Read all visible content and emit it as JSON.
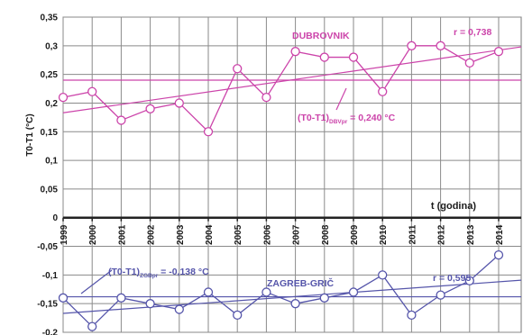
{
  "chart_data": {
    "type": "line",
    "ylabel": "T0-T1 (°C)",
    "xlabel": "t (godina)",
    "x": [
      1999,
      2000,
      2001,
      2002,
      2003,
      2004,
      2005,
      2006,
      2007,
      2008,
      2009,
      2010,
      2011,
      2012,
      2013,
      2014
    ],
    "x_tick_labels": [
      "1999",
      "2000",
      "2001",
      "2002",
      "2003",
      "2004",
      "2005",
      "2006",
      "2007",
      "2008",
      "2009",
      "2010",
      "2011",
      "2012",
      "2013",
      "2014"
    ],
    "ylim": [
      -0.2,
      0.35
    ],
    "y_ticks": [
      -0.2,
      -0.15,
      -0.1,
      -0.05,
      0,
      0.05,
      0.1,
      0.15,
      0.2,
      0.25,
      0.3,
      0.35
    ],
    "y_tick_labels": [
      "-0,2",
      "-0,15",
      "-0,1",
      "-0,05",
      "0",
      "0,05",
      "0,1",
      "0,15",
      "0,2",
      "0,25",
      "0,3",
      "0,35"
    ],
    "grid": true,
    "series": [
      {
        "name": "DUBROVNIK",
        "color": "#cc44aa",
        "values": [
          0.21,
          0.22,
          0.17,
          0.19,
          0.2,
          0.15,
          0.26,
          0.21,
          0.29,
          0.28,
          0.28,
          0.22,
          0.3,
          0.3,
          0.27,
          0.29
        ],
        "trend": [
          0.183,
          0.298
        ],
        "mean": 0.24,
        "r_label": "r = 0,738",
        "mean_label_main": "(T0-T1)",
        "mean_label_sub": "DBVpr",
        "mean_label_rest": " = 0,240 °C"
      },
      {
        "name": "ZAGREB-GRIČ",
        "color": "#5555aa",
        "values": [
          -0.14,
          -0.19,
          -0.14,
          -0.15,
          -0.16,
          -0.13,
          -0.17,
          -0.13,
          -0.15,
          -0.14,
          -0.13,
          -0.1,
          -0.17,
          -0.135,
          -0.11,
          -0.065
        ],
        "trend": [
          -0.167,
          -0.109
        ],
        "mean": -0.138,
        "r_label": "r = 0,595",
        "mean_label_main": "(T0-T1)",
        "mean_label_sub": "ZGBpr",
        "mean_label_rest": " = -0,138 °C"
      }
    ]
  }
}
